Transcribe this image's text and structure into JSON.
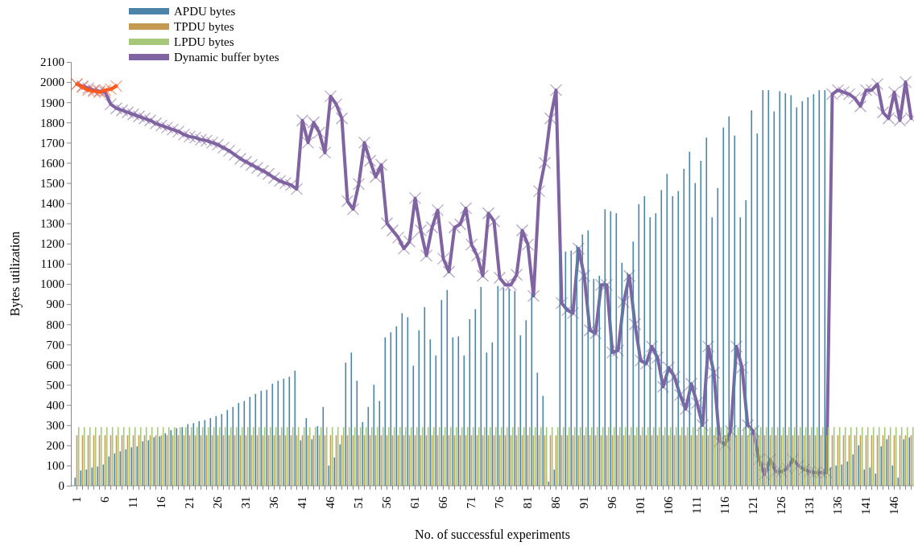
{
  "chart_data": {
    "type": "bar",
    "xlabel": "No. of successful experiments",
    "ylabel": "Bytes utilization",
    "legend": "top left",
    "ylim": [
      0,
      2100
    ],
    "yticks": [
      0,
      100,
      200,
      300,
      400,
      500,
      600,
      700,
      800,
      900,
      1000,
      1100,
      1200,
      1300,
      1400,
      1500,
      1600,
      1700,
      1800,
      1900,
      2000,
      2100
    ],
    "categories": [
      "1",
      null,
      null,
      null,
      null,
      "6",
      null,
      null,
      null,
      null,
      "11",
      null,
      null,
      null,
      null,
      "16",
      null,
      null,
      null,
      null,
      "21",
      null,
      null,
      null,
      null,
      "26",
      null,
      null,
      null,
      null,
      "31",
      null,
      null,
      null,
      null,
      "36",
      null,
      null,
      null,
      null,
      "41",
      null,
      null,
      null,
      null,
      "46",
      null,
      null,
      null,
      null,
      "51",
      null,
      null,
      null,
      null,
      "56",
      null,
      null,
      null,
      null,
      "61",
      null,
      null,
      null,
      null,
      "66",
      null,
      null,
      null,
      null,
      "71",
      null,
      null,
      null,
      null,
      "76",
      null,
      null,
      null,
      null,
      "81",
      null,
      null,
      null,
      null,
      "86",
      null,
      null,
      null,
      null,
      "91",
      null,
      null,
      null,
      null,
      "96",
      null,
      null,
      null,
      null,
      "101",
      null,
      null,
      null,
      null,
      "106",
      null,
      null,
      null,
      null,
      "111",
      null,
      null,
      null,
      null,
      "116",
      null,
      null,
      null,
      null,
      "121",
      null,
      null,
      null,
      null,
      "126",
      null,
      null,
      null,
      null,
      "131",
      null,
      null,
      null,
      null,
      "136",
      null,
      null,
      null,
      null,
      "141",
      null,
      null,
      null,
      null,
      "146",
      null,
      null,
      null
    ],
    "series": [
      {
        "name": "APDU bytes",
        "color": "#4a84a8",
        "values": [
          40,
          75,
          80,
          90,
          95,
          105,
          145,
          160,
          170,
          180,
          190,
          195,
          220,
          225,
          240,
          245,
          260,
          275,
          285,
          290,
          305,
          310,
          320,
          325,
          335,
          345,
          355,
          375,
          390,
          410,
          420,
          440,
          455,
          470,
          475,
          505,
          520,
          530,
          540,
          570,
          225,
          335,
          230,
          295,
          390,
          100,
          140,
          205,
          610,
          660,
          520,
          315,
          390,
          500,
          420,
          735,
          760,
          790,
          855,
          835,
          595,
          770,
          885,
          725,
          645,
          920,
          970,
          735,
          740,
          645,
          825,
          875,
          985,
          660,
          710,
          990,
          980,
          975,
          965,
          745,
          820,
          950,
          560,
          445,
          20,
          80,
          1170,
          1160,
          1165,
          1190,
          1245,
          1265,
          1025,
          1040,
          1370,
          1360,
          1350,
          1105,
          1055,
          1210,
          1395,
          1435,
          1330,
          1350,
          1465,
          1545,
          1435,
          1460,
          1570,
          1655,
          1500,
          1610,
          1725,
          1330,
          1475,
          1775,
          1830,
          1735,
          1330,
          1415,
          1860,
          1745,
          1960,
          1960,
          1855,
          1955,
          1945,
          1935,
          1875,
          1905,
          1925,
          1940,
          1960,
          1960,
          90,
          100,
          105,
          120,
          155,
          200,
          80,
          90,
          60,
          195,
          230,
          100,
          40,
          230,
          240
        ]
      },
      {
        "name": "TPDU bytes",
        "color": "#c49a52",
        "values": [
          250,
          250,
          250,
          250,
          250,
          250,
          250,
          250,
          250,
          250,
          250,
          250,
          250,
          250,
          250,
          250,
          250,
          250,
          250,
          250,
          250,
          250,
          250,
          250,
          250,
          250,
          250,
          250,
          250,
          250,
          250,
          250,
          250,
          250,
          250,
          250,
          250,
          250,
          250,
          250,
          250,
          250,
          250,
          250,
          250,
          250,
          250,
          250,
          250,
          250,
          250,
          250,
          250,
          250,
          250,
          250,
          250,
          250,
          250,
          250,
          250,
          250,
          250,
          250,
          250,
          250,
          250,
          250,
          250,
          250,
          250,
          250,
          250,
          250,
          250,
          250,
          250,
          250,
          250,
          250,
          250,
          250,
          250,
          250,
          250,
          250,
          250,
          250,
          250,
          250,
          250,
          250,
          250,
          250,
          250,
          250,
          250,
          250,
          250,
          250,
          250,
          250,
          250,
          250,
          250,
          250,
          250,
          250,
          250,
          250,
          250,
          250,
          250,
          250,
          250,
          250,
          250,
          250,
          250,
          250,
          250,
          250,
          250,
          250,
          250,
          250,
          250,
          250,
          250,
          250,
          250,
          250,
          250,
          250,
          250,
          250,
          250,
          250,
          250,
          250,
          250,
          250,
          250,
          250,
          250,
          250,
          250,
          250,
          250
        ]
      },
      {
        "name": "LPDU bytes",
        "color": "#a6c878",
        "values": [
          290,
          290,
          290,
          290,
          290,
          290,
          290,
          290,
          290,
          290,
          290,
          290,
          290,
          290,
          290,
          290,
          290,
          290,
          290,
          290,
          290,
          290,
          290,
          290,
          290,
          290,
          290,
          290,
          290,
          290,
          290,
          290,
          290,
          290,
          290,
          290,
          290,
          290,
          290,
          290,
          290,
          290,
          290,
          290,
          290,
          290,
          290,
          290,
          290,
          290,
          290,
          290,
          290,
          290,
          290,
          290,
          290,
          290,
          290,
          290,
          290,
          290,
          290,
          290,
          290,
          290,
          290,
          290,
          290,
          290,
          290,
          290,
          290,
          290,
          290,
          290,
          290,
          290,
          290,
          290,
          290,
          290,
          290,
          290,
          290,
          290,
          290,
          290,
          290,
          290,
          290,
          290,
          290,
          290,
          290,
          290,
          290,
          290,
          290,
          290,
          290,
          290,
          290,
          290,
          290,
          290,
          290,
          290,
          290,
          290,
          290,
          290,
          290,
          290,
          290,
          290,
          290,
          290,
          290,
          290,
          290,
          290,
          290,
          290,
          290,
          290,
          290,
          290,
          290,
          290,
          290,
          290,
          290,
          290,
          290,
          290,
          290,
          290,
          290,
          290,
          290,
          290,
          290,
          290,
          290,
          290,
          290,
          290,
          290
        ]
      },
      {
        "name": "Dynamic buffer bytes",
        "type": "line",
        "color": "#8064a2",
        "marker": "cross",
        "values": [
          1990,
          1980,
          1970,
          1960,
          1955,
          1950,
          1890,
          1870,
          1860,
          1850,
          1840,
          1830,
          1820,
          1810,
          1795,
          1785,
          1775,
          1765,
          1755,
          1740,
          1730,
          1725,
          1715,
          1710,
          1700,
          1690,
          1675,
          1660,
          1640,
          1620,
          1605,
          1590,
          1575,
          1560,
          1545,
          1525,
          1510,
          1500,
          1490,
          1470,
          1810,
          1700,
          1800,
          1750,
          1650,
          1930,
          1890,
          1820,
          1410,
          1370,
          1495,
          1700,
          1610,
          1530,
          1590,
          1300,
          1265,
          1230,
          1175,
          1210,
          1425,
          1265,
          1140,
          1280,
          1365,
          1125,
          1060,
          1280,
          1295,
          1375,
          1195,
          1140,
          1040,
          1350,
          1310,
          1030,
          995,
          995,
          1045,
          1265,
          1195,
          940,
          1460,
          1600,
          1820,
          1960,
          905,
          870,
          855,
          1175,
          1040,
          770,
          755,
          995,
          995,
          660,
          670,
          910,
          1040,
          800,
          620,
          605,
          690,
          635,
          490,
          585,
          540,
          450,
          380,
          505,
          410,
          300,
          690,
          560,
          220,
          205,
          270,
          690,
          585,
          300,
          270,
          130,
          55,
          130,
          70,
          70,
          85,
          130,
          100,
          80,
          70,
          65,
          65,
          65,
          1940,
          1960,
          1950,
          1940,
          1920,
          1880,
          1960,
          1960,
          1990,
          1850,
          1820,
          1950,
          1810,
          2000,
          1820
        ]
      },
      {
        "type": "line",
        "color": "#ff5a1e",
        "marker": "cross",
        "values": [
          1990,
          1975,
          1960,
          1955,
          1950,
          1960,
          1965,
          1980,
          null,
          null,
          null,
          null,
          null,
          null,
          null,
          null,
          null,
          null,
          null,
          null,
          null,
          null,
          null,
          null,
          null,
          null,
          null,
          null,
          null,
          null,
          null,
          null,
          null,
          null,
          null,
          null,
          null,
          null,
          null,
          null,
          null,
          null,
          null,
          null,
          null,
          null,
          null,
          null,
          null,
          null,
          null,
          null,
          null,
          null,
          null,
          null,
          null,
          null,
          null,
          null,
          null,
          null,
          null,
          null,
          null,
          null,
          null,
          null,
          null,
          null,
          null,
          null,
          null,
          null,
          null,
          null,
          null,
          null,
          null,
          null,
          null,
          null,
          null,
          null,
          null,
          null,
          null,
          null,
          null,
          null,
          null,
          null,
          null,
          null,
          null,
          null,
          null,
          null,
          null,
          null,
          null,
          null,
          null,
          null,
          null,
          null,
          null,
          null,
          null,
          null,
          null,
          null,
          null,
          null,
          null,
          null,
          null,
          null,
          null,
          null,
          null,
          null,
          null,
          null,
          null,
          null,
          null,
          null,
          null,
          null,
          null,
          null,
          null,
          null,
          null,
          null,
          null,
          null,
          null,
          null,
          null,
          null,
          null,
          null,
          null,
          null,
          null,
          null,
          null
        ]
      }
    ]
  }
}
